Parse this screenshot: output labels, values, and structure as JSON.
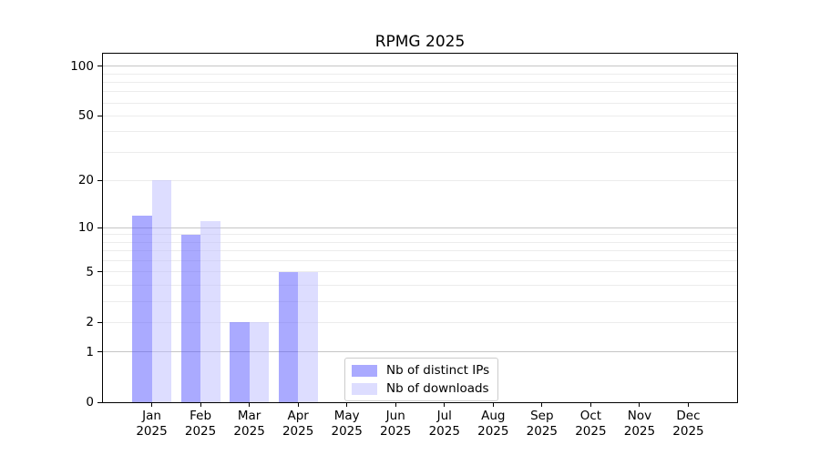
{
  "header": {
    "title": "RPMG 2025"
  },
  "chart_data": {
    "type": "bar",
    "title": "RPMG 2025",
    "year_label": "2025",
    "categories": [
      "Jan",
      "Feb",
      "Mar",
      "Apr",
      "May",
      "Jun",
      "Jul",
      "Aug",
      "Sep",
      "Oct",
      "Nov",
      "Dec"
    ],
    "series": [
      {
        "name": "Nb of distinct IPs",
        "color": "#5555ff",
        "alpha": 0.5,
        "values": [
          12,
          9,
          2,
          5,
          0,
          0,
          0,
          0,
          0,
          0,
          0,
          0
        ]
      },
      {
        "name": "Nb of downloads",
        "color": "#bbbbff",
        "alpha": 0.5,
        "values": [
          20,
          11,
          2,
          5,
          0,
          0,
          0,
          0,
          0,
          0,
          0,
          0
        ]
      }
    ],
    "xlabel": "",
    "ylabel": "",
    "yscale": "log(1+x)",
    "ylim": [
      0,
      118
    ],
    "yticks": [
      0,
      1,
      2,
      5,
      10,
      20,
      50,
      100
    ],
    "grid": "both",
    "grid_major_values": [
      1,
      10,
      100
    ],
    "grid_minor_values": [
      2,
      3,
      4,
      5,
      6,
      7,
      8,
      9,
      20,
      30,
      40,
      50,
      60,
      70,
      80,
      90
    ],
    "legend_position": "lower center inside axes",
    "colors": {
      "bar_distinct_ips_rendered": "#aaaaff",
      "bar_downloads_rendered": "#ddddff",
      "grid_major": "#c5c5c5",
      "grid_minor": "#ececec",
      "spine": "#000000",
      "text": "#000000",
      "background": "#ffffff",
      "legend_border": "#cccccc"
    }
  }
}
